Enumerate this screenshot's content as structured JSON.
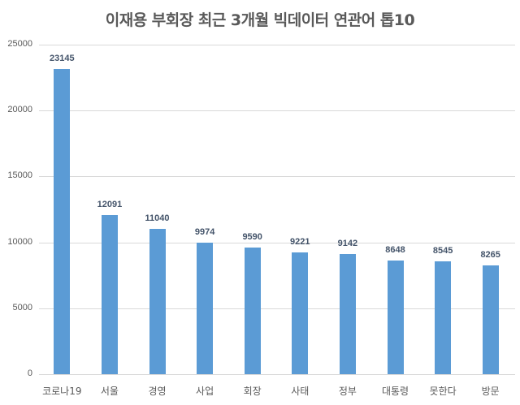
{
  "chart_data": {
    "type": "bar",
    "title": "이재용 부회장 최근 3개월 빅데이터 연관어 톱10",
    "xlabel": "",
    "ylabel": "",
    "categories": [
      "코로나19",
      "서울",
      "경영",
      "사업",
      "회장",
      "사태",
      "정부",
      "대통령",
      "못한다",
      "방문"
    ],
    "values": [
      23145,
      12091,
      11040,
      9974,
      9590,
      9221,
      9142,
      8648,
      8545,
      8265
    ],
    "ylim": [
      0,
      25000
    ],
    "yticks": [
      "0",
      "5000",
      "10000",
      "15000",
      "20000",
      "25000"
    ],
    "grid": true,
    "legend": "none",
    "data_labels": true,
    "colors": {
      "bar": "#5b9bd5",
      "label": "#44546a",
      "grid": "#d9d9d9",
      "title": "#595959"
    }
  }
}
